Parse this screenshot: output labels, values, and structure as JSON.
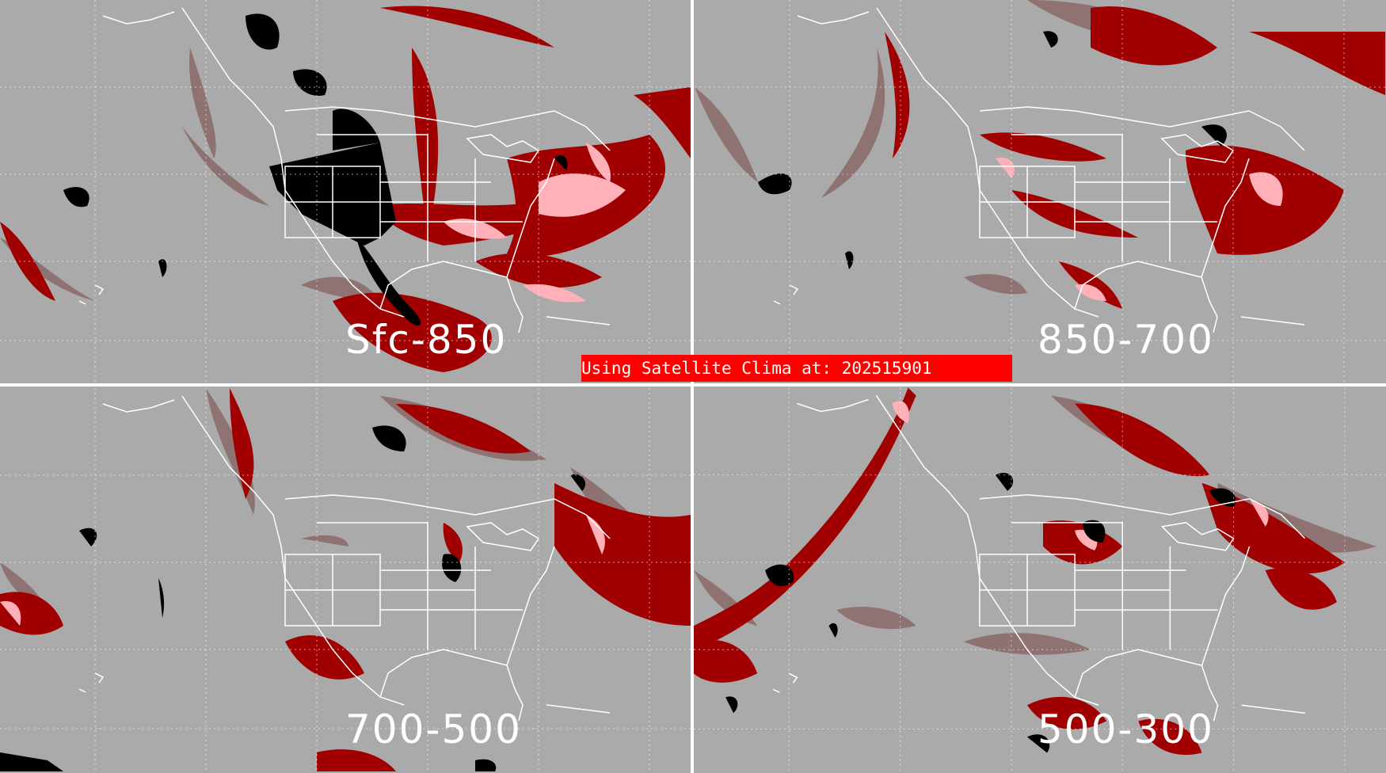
{
  "banner": {
    "text": "Using Satellite Clima at: 202515901",
    "color": "#ff0000"
  },
  "colors": {
    "background": "#aaaaaa",
    "coastline": "#ffffff",
    "light_category": "#8c6b6b",
    "medium_category": "#a00000",
    "high_category": "#ffb0b8",
    "ground_mask": "#000000"
  },
  "panels": [
    {
      "id": "top-left",
      "label": "Sfc-850"
    },
    {
      "id": "top-right",
      "label": "850-700"
    },
    {
      "id": "bottom-left",
      "label": "700-500"
    },
    {
      "id": "bottom-right",
      "label": "500-300"
    }
  ]
}
